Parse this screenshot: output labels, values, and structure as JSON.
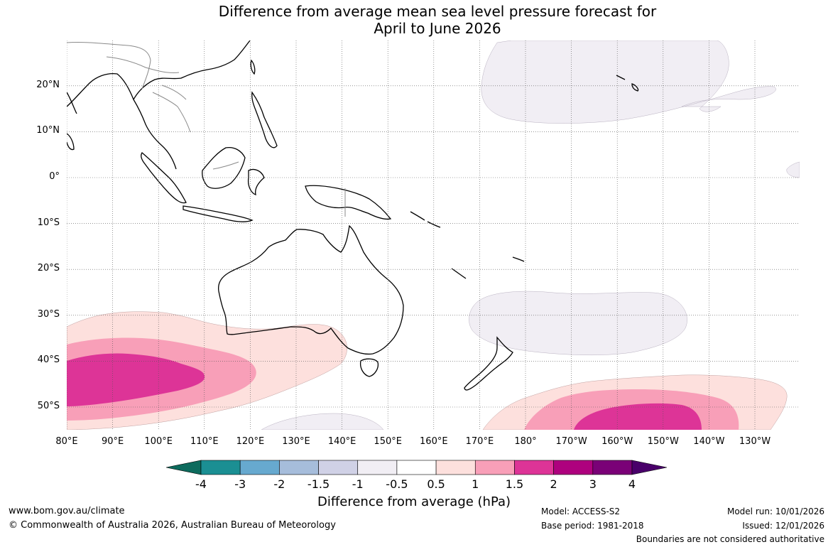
{
  "title": {
    "line1": "Difference from average mean sea level pressure forecast for",
    "line2": "April to June 2026"
  },
  "map": {
    "lat_labels": [
      "20°N",
      "10°N",
      "0°",
      "10°S",
      "20°S",
      "30°S",
      "40°S",
      "50°S"
    ],
    "lon_labels": [
      "80°E",
      "90°E",
      "100°E",
      "110°E",
      "120°E",
      "130°E",
      "140°E",
      "150°E",
      "160°E",
      "170°E",
      "180°",
      "170°W",
      "160°W",
      "150°W",
      "140°W",
      "130°W"
    ],
    "colors": {
      "land_outline": "#000000",
      "border": "#8a8a8a",
      "grid": "#555555",
      "neutral_neg": "#f1eef4",
      "pos_05": "#fde0dd",
      "pos_1": "#f89fb8",
      "pos_15": "#dd3497"
    }
  },
  "colorbar": {
    "ticks": [
      "-4",
      "-3",
      "-2",
      "-1.5",
      "-1",
      "-0.5",
      "0.5",
      "1",
      "1.5",
      "2",
      "3",
      "4"
    ],
    "colors": [
      "#0d6b5d",
      "#1b8f93",
      "#67a9cf",
      "#a6bddb",
      "#d0d1e6",
      "#f1eef4",
      "#ffffff",
      "#fde0dd",
      "#f89fb8",
      "#dd3497",
      "#ae017e",
      "#7a0177",
      "#49006a"
    ],
    "label": "Difference from average (hPa)"
  },
  "footer": {
    "website": "www.bom.gov.au/climate",
    "copyright": "© Commonwealth of Australia 2026, Australian Bureau of Meteorology",
    "model": "Model: ACCESS-S2",
    "base_period": "Base period: 1981-2018",
    "model_run": "Model run: 10/01/2026",
    "issued": "Issued: 12/01/2026",
    "disclaimer": "Boundaries are not considered authoritative"
  }
}
